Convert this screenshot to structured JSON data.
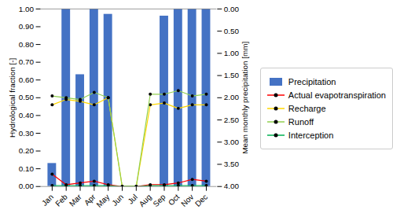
{
  "chart_data": {
    "type": "bar",
    "categories": [
      "Jan",
      "Feb",
      "Mar",
      "Apr",
      "May",
      "Jun",
      "Jul",
      "Aug",
      "Sep",
      "Oct",
      "Nov",
      "Dec"
    ],
    "series": [
      {
        "name": "Precipitation",
        "type": "bar",
        "color": "#4472C4",
        "values": [
          0.13,
          1.0,
          0.63,
          1.0,
          0.97,
          0.0,
          0.0,
          0.0,
          0.96,
          1.0,
          1.0,
          1.0
        ]
      },
      {
        "name": "Actual evapotranspiration",
        "type": "line",
        "marker": "o",
        "color": "#FF0000",
        "values": [
          0.07,
          0.01,
          0.02,
          0.03,
          0.01,
          0.0,
          0.0,
          0.01,
          0.01,
          0.02,
          0.04,
          0.03
        ]
      },
      {
        "name": "Recharge",
        "type": "line",
        "marker": "o",
        "color": "#FFD700",
        "values": [
          0.46,
          0.49,
          0.48,
          0.46,
          0.5,
          0.0,
          0.0,
          0.46,
          0.47,
          0.44,
          0.46,
          0.46
        ]
      },
      {
        "name": "Runoff",
        "type": "line",
        "marker": "o",
        "color": "#92D050",
        "values": [
          0.51,
          0.5,
          0.49,
          0.53,
          0.5,
          0.0,
          0.0,
          0.52,
          0.52,
          0.54,
          0.51,
          0.52
        ]
      },
      {
        "name": "Interception",
        "type": "line",
        "marker": "o",
        "color": "#00B050",
        "values": [
          0.005,
          0.005,
          0.005,
          0.005,
          0.005,
          0.0,
          0.0,
          0.005,
          0.005,
          0.005,
          0.005,
          0.005
        ]
      }
    ],
    "ylabel": "Hydrological fraction [-]",
    "y2label": "Mean monthly precipitation [mm]",
    "ylim": [
      0.0,
      1.0
    ],
    "yticks": [
      {
        "value": 0.0,
        "label": "0.00"
      },
      {
        "value": 0.1,
        "label": "0.10"
      },
      {
        "value": 0.2,
        "label": "0.20"
      },
      {
        "value": 0.3,
        "label": "0.30"
      },
      {
        "value": 0.4,
        "label": "0.40"
      },
      {
        "value": 0.5,
        "label": "0.50"
      },
      {
        "value": 0.6,
        "label": "0.60"
      },
      {
        "value": 0.7,
        "label": "0.70"
      },
      {
        "value": 0.8,
        "label": "0.80"
      },
      {
        "value": 0.9,
        "label": "0.90"
      },
      {
        "value": 1.0,
        "label": "1.00"
      }
    ],
    "y2lim": [
      4.0,
      0.0
    ],
    "y2ticks": [
      {
        "value": 0.0,
        "label": "0.00"
      },
      {
        "value": 0.5,
        "label": "0.50"
      },
      {
        "value": 1.0,
        "label": "1.00"
      },
      {
        "value": 1.5,
        "label": "1.50"
      },
      {
        "value": 2.0,
        "label": "2.00"
      },
      {
        "value": 2.5,
        "label": "2.50"
      },
      {
        "value": 3.0,
        "label": "3.00"
      },
      {
        "value": 3.5,
        "label": "3.50"
      },
      {
        "value": 4.0,
        "label": "4.00"
      }
    ],
    "legend": "right",
    "grid": false
  }
}
